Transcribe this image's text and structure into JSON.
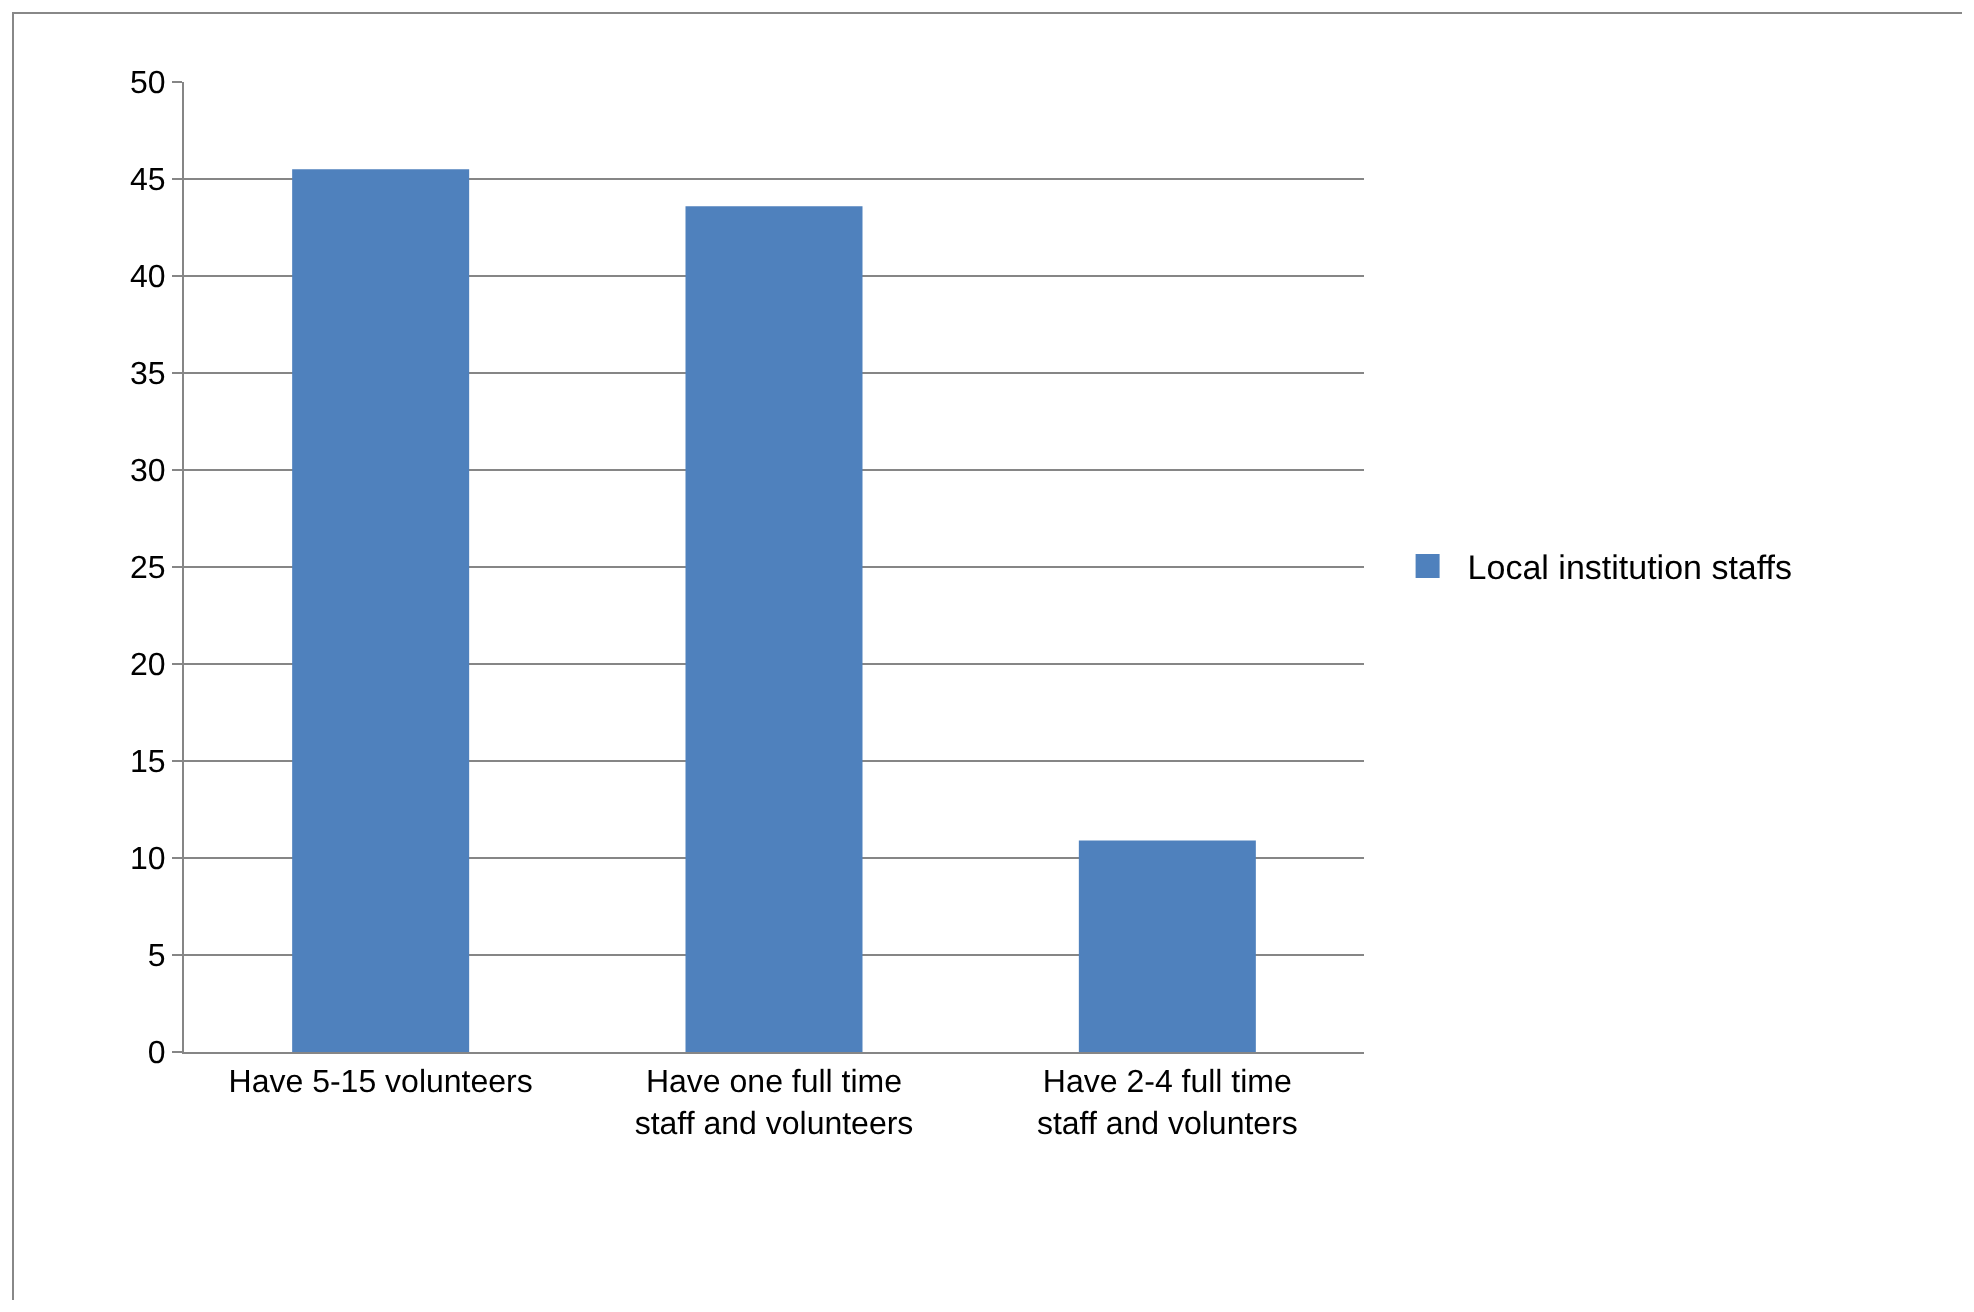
{
  "chart_data": {
    "type": "bar",
    "categories": [
      "Have 5-15 volunteers",
      "Have one full time staff and volunteers",
      "Have 2-4 full time staff and volunters"
    ],
    "series": [
      {
        "name": "Local institution staffs",
        "color": "#4f81bd",
        "values": [
          45.5,
          43.6,
          10.9
        ]
      }
    ],
    "ylim": [
      0,
      50
    ],
    "yticks": [
      0,
      5,
      10,
      15,
      20,
      25,
      30,
      35,
      40,
      45,
      50
    ],
    "grid": "y",
    "legend": "right"
  }
}
